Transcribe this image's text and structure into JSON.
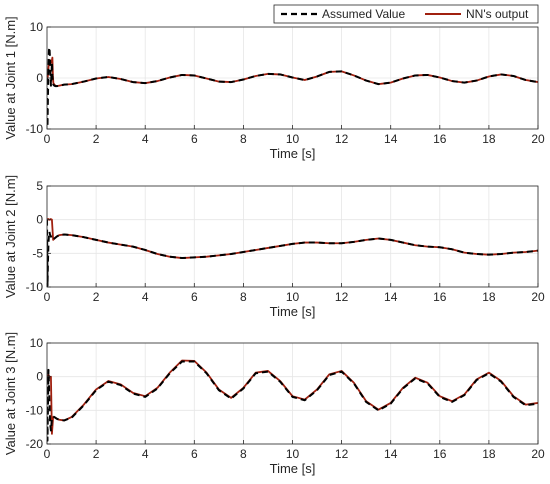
{
  "legend": {
    "entries": [
      {
        "label": "Assumed Value",
        "color": "#000000",
        "style": "dashed"
      },
      {
        "label": "NN's output",
        "color": "#a0200f",
        "style": "solid"
      }
    ],
    "placement": "top-right"
  },
  "colors": {
    "assumed": "#000000",
    "nn": "#a0200f",
    "grid": "#e6e6e6",
    "axis": "#262626"
  },
  "chart_data": [
    {
      "type": "line",
      "ylabel": "Value at Joint 1 [N.m]",
      "xlabel": "Time [s]",
      "xlim": [
        0,
        20
      ],
      "ylim": [
        -10,
        10
      ],
      "xticks": [
        0,
        2,
        4,
        6,
        8,
        10,
        12,
        14,
        16,
        18,
        20
      ],
      "yticks": [
        -10,
        0,
        10
      ],
      "grid": true,
      "series": [
        {
          "name": "Assumed Value",
          "x": [
            0,
            0.02,
            0.04,
            0.06,
            0.08,
            0.1,
            0.12,
            0.14,
            0.16,
            0.18,
            0.2,
            0.22,
            0.24,
            0.26,
            0.3,
            0.35,
            0.4,
            0.5,
            0.7,
            1,
            1.5,
            2,
            2.5,
            3,
            3.5,
            4,
            4.5,
            5,
            5.5,
            6,
            6.5,
            7,
            7.5,
            8,
            8.5,
            9,
            9.5,
            10,
            10.5,
            11,
            11.5,
            12,
            12.5,
            13,
            13.5,
            14,
            14.5,
            15,
            15.5,
            16,
            16.5,
            17,
            17.5,
            18,
            18.5,
            19,
            19.5,
            20
          ],
          "y": [
            0,
            -9.5,
            -3,
            2,
            5.5,
            6,
            4,
            1,
            -1.5,
            0.5,
            3,
            0.5,
            -1,
            -1.3,
            -1.5,
            -1.6,
            -1.6,
            -1.5,
            -1.3,
            -1.2,
            -0.7,
            -0.1,
            0.2,
            -0.2,
            -0.8,
            -1,
            -0.6,
            0.1,
            0.6,
            0.5,
            -0.1,
            -0.7,
            -0.8,
            -0.3,
            0.4,
            0.8,
            0.7,
            0.1,
            -0.4,
            0.3,
            1.2,
            1.3,
            0.5,
            -0.5,
            -1.2,
            -0.9,
            -0.1,
            0.5,
            0.6,
            0.1,
            -0.6,
            -0.9,
            -0.5,
            0.3,
            0.7,
            0.4,
            -0.4,
            -0.8
          ]
        },
        {
          "name": "NN's output",
          "x": [
            0,
            0.02,
            0.04,
            0.06,
            0.08,
            0.1,
            0.12,
            0.14,
            0.16,
            0.18,
            0.2,
            0.22,
            0.24,
            0.26,
            0.3,
            0.35,
            0.4,
            0.5,
            0.7,
            1,
            1.5,
            2,
            2.5,
            3,
            3.5,
            4,
            4.5,
            5,
            5.5,
            6,
            6.5,
            7,
            7.5,
            8,
            8.5,
            9,
            9.5,
            10,
            10.5,
            11,
            11.5,
            12,
            12.5,
            13,
            13.5,
            14,
            14.5,
            15,
            15.5,
            16,
            16.5,
            17,
            17.5,
            18,
            18.5,
            19,
            19.5,
            20
          ],
          "y": [
            0,
            0.1,
            0.5,
            2,
            3,
            3.5,
            3.5,
            3,
            3,
            3.2,
            3.5,
            4,
            0.5,
            -1,
            -1.3,
            -1.5,
            -1.6,
            -1.5,
            -1.3,
            -1.2,
            -0.7,
            -0.1,
            0.2,
            -0.2,
            -0.8,
            -1,
            -0.6,
            0.1,
            0.6,
            0.5,
            -0.1,
            -0.7,
            -0.8,
            -0.3,
            0.4,
            0.8,
            0.7,
            0.1,
            -0.4,
            0.3,
            1.2,
            1.3,
            0.5,
            -0.5,
            -1.2,
            -0.9,
            -0.1,
            0.5,
            0.6,
            0.1,
            -0.6,
            -0.9,
            -0.5,
            0.3,
            0.7,
            0.4,
            -0.4,
            -0.8
          ]
        }
      ]
    },
    {
      "type": "line",
      "ylabel": "Value at Joint 2 [N.m]",
      "xlabel": "Time [s]",
      "xlim": [
        0,
        20
      ],
      "ylim": [
        -10,
        5
      ],
      "xticks": [
        0,
        2,
        4,
        6,
        8,
        10,
        12,
        14,
        16,
        18,
        20
      ],
      "yticks": [
        -10,
        -5,
        0,
        5
      ],
      "grid": true,
      "series": [
        {
          "name": "Assumed Value",
          "x": [
            0,
            0.02,
            0.04,
            0.06,
            0.08,
            0.1,
            0.12,
            0.15,
            0.2,
            0.25,
            0.3,
            0.4,
            0.5,
            0.7,
            1,
            1.5,
            2,
            2.5,
            3,
            3.5,
            4,
            4.5,
            5,
            5.5,
            6,
            6.5,
            7,
            7.5,
            8,
            8.5,
            9,
            9.5,
            10,
            10.5,
            11,
            11.5,
            12,
            12.5,
            13,
            13.5,
            14,
            14.5,
            15,
            15.5,
            16,
            16.5,
            17,
            17.5,
            18,
            18.5,
            19,
            19.5,
            20
          ],
          "y": [
            0,
            -9.8,
            -6,
            -3.5,
            -2.2,
            -1.8,
            -2.2,
            -2.4,
            -2.8,
            -3,
            -2.8,
            -2.5,
            -2.3,
            -2.2,
            -2.3,
            -2.6,
            -3,
            -3.4,
            -3.7,
            -4,
            -4.5,
            -5.1,
            -5.5,
            -5.7,
            -5.6,
            -5.5,
            -5.3,
            -5.1,
            -4.8,
            -4.5,
            -4.2,
            -3.9,
            -3.6,
            -3.4,
            -3.4,
            -3.5,
            -3.5,
            -3.3,
            -3,
            -2.8,
            -3,
            -3.4,
            -3.8,
            -4,
            -4.1,
            -4.4,
            -4.9,
            -5.1,
            -5.2,
            -5.1,
            -4.9,
            -4.8,
            -4.6
          ]
        },
        {
          "name": "NN's output",
          "x": [
            0,
            0.02,
            0.04,
            0.06,
            0.08,
            0.1,
            0.12,
            0.15,
            0.2,
            0.25,
            0.3,
            0.4,
            0.5,
            0.7,
            1,
            1.5,
            2,
            2.5,
            3,
            3.5,
            4,
            4.5,
            5,
            5.5,
            6,
            6.5,
            7,
            7.5,
            8,
            8.5,
            9,
            9.5,
            10,
            10.5,
            11,
            11.5,
            12,
            12.5,
            13,
            13.5,
            14,
            14.5,
            15,
            15.5,
            16,
            16.5,
            17,
            17.5,
            18,
            18.5,
            19,
            19.5,
            20
          ],
          "y": [
            0,
            0,
            0.1,
            0.1,
            0,
            0,
            0,
            0.1,
            0,
            -3,
            -2.8,
            -2.5,
            -2.3,
            -2.2,
            -2.3,
            -2.6,
            -3,
            -3.4,
            -3.7,
            -4,
            -4.5,
            -5.1,
            -5.5,
            -5.7,
            -5.6,
            -5.5,
            -5.3,
            -5.1,
            -4.8,
            -4.5,
            -4.2,
            -3.9,
            -3.6,
            -3.4,
            -3.4,
            -3.5,
            -3.5,
            -3.3,
            -3,
            -2.8,
            -3,
            -3.4,
            -3.8,
            -4,
            -4.1,
            -4.4,
            -4.9,
            -5.1,
            -5.2,
            -5.1,
            -4.9,
            -4.8,
            -4.6
          ]
        }
      ]
    },
    {
      "type": "line",
      "ylabel": "Value at Joint 3 [N.m]",
      "xlabel": "Time [s]",
      "xlim": [
        0,
        20
      ],
      "ylim": [
        -20,
        10
      ],
      "xticks": [
        0,
        2,
        4,
        6,
        8,
        10,
        12,
        14,
        16,
        18,
        20
      ],
      "yticks": [
        -20,
        -10,
        0,
        10
      ],
      "grid": true,
      "series": [
        {
          "name": "Assumed Value",
          "x": [
            0,
            0.02,
            0.04,
            0.06,
            0.08,
            0.1,
            0.13,
            0.16,
            0.2,
            0.25,
            0.3,
            0.4,
            0.5,
            0.7,
            1,
            1.5,
            2,
            2.5,
            3,
            3.5,
            4,
            4.5,
            5,
            5.5,
            6,
            6.5,
            7,
            7.5,
            8,
            8.5,
            9,
            9.5,
            10,
            10.5,
            11,
            11.5,
            12,
            12.5,
            13,
            13.5,
            14,
            14.5,
            15,
            15.5,
            16,
            16.5,
            17,
            17.5,
            18,
            18.5,
            19,
            19.5,
            20
          ],
          "y": [
            0,
            -19,
            -8,
            2,
            -2,
            -8,
            -14,
            -16,
            -12.5,
            -11.8,
            -12,
            -12.5,
            -12.8,
            -13,
            -12.2,
            -8.5,
            -4,
            -1.5,
            -2.5,
            -5,
            -6,
            -3.5,
            1,
            4.5,
            4.5,
            1,
            -4,
            -6.5,
            -3.5,
            1,
            1.5,
            -1.5,
            -6,
            -7,
            -4,
            0.5,
            1.5,
            -2,
            -7.5,
            -10,
            -8,
            -3.5,
            -0.5,
            -2,
            -6,
            -7.5,
            -5.5,
            -1,
            1,
            -1.5,
            -6,
            -8.5,
            -8
          ]
        },
        {
          "name": "NN's output",
          "x": [
            0,
            0.02,
            0.04,
            0.06,
            0.08,
            0.1,
            0.13,
            0.16,
            0.2,
            0.25,
            0.3,
            0.4,
            0.5,
            0.7,
            1,
            1.5,
            2,
            2.5,
            3,
            3.5,
            4,
            4.5,
            5,
            5.5,
            6,
            6.5,
            7,
            7.5,
            8,
            8.5,
            9,
            9.5,
            10,
            10.5,
            11,
            11.5,
            12,
            12.5,
            13,
            13.5,
            14,
            14.5,
            15,
            15.5,
            16,
            16.5,
            17,
            17.5,
            18,
            18.5,
            19,
            19.5,
            20
          ],
          "y": [
            0,
            0,
            0.3,
            0.5,
            0.2,
            0,
            -0.3,
            0,
            -17,
            -12,
            -12,
            -12.5,
            -12.8,
            -13,
            -12,
            -8.3,
            -3.8,
            -1.3,
            -2.3,
            -4.8,
            -5.8,
            -3.3,
            1.2,
            4.8,
            4.7,
            1.2,
            -3.8,
            -6.3,
            -3.3,
            1.2,
            1.7,
            -1.3,
            -5.8,
            -6.8,
            -3.8,
            0.7,
            1.7,
            -1.8,
            -7.3,
            -9.8,
            -7.8,
            -3.3,
            -0.3,
            -1.8,
            -5.8,
            -7.3,
            -5.3,
            -0.8,
            1.2,
            -1.3,
            -5.8,
            -8.3,
            -7.8
          ]
        }
      ]
    }
  ]
}
